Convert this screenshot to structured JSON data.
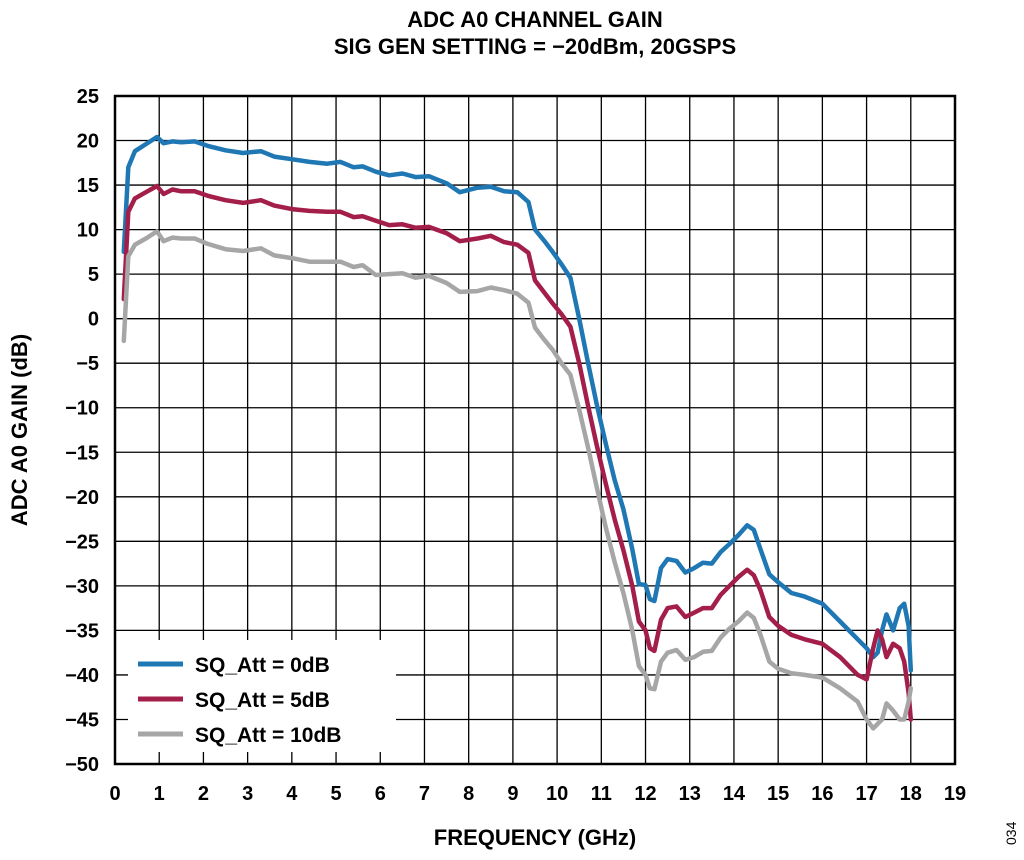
{
  "chart_data": {
    "type": "line",
    "title": "ADC A0 CHANNEL GAIN",
    "subtitle": "SIG GEN SETTING = −20dBm, 20GSPS",
    "xlabel": "FREQUENCY (GHz)",
    "ylabel": "ADC A0 GAIN (dB)",
    "xlim": [
      0,
      19
    ],
    "ylim": [
      -50,
      25
    ],
    "xticks": [
      0,
      1,
      2,
      3,
      4,
      5,
      6,
      7,
      8,
      9,
      10,
      11,
      12,
      13,
      14,
      15,
      16,
      17,
      18,
      19
    ],
    "yticks": [
      25,
      20,
      15,
      10,
      5,
      0,
      -5,
      -10,
      -15,
      -20,
      -25,
      -30,
      -35,
      -40,
      -45,
      -50
    ],
    "xtick_labels": [
      "0",
      "1",
      "2",
      "3",
      "4",
      "5",
      "6",
      "7",
      "8",
      "9",
      "10",
      "11",
      "12",
      "13",
      "14",
      "15",
      "16",
      "17",
      "18",
      "19"
    ],
    "ytick_labels": [
      "25",
      "20",
      "15",
      "10",
      "5",
      "0",
      "−5",
      "−10",
      "−15",
      "−20",
      "−25",
      "−30",
      "−35",
      "−40",
      "−45",
      "−50"
    ],
    "grid": true,
    "legend_position": "bottom-left",
    "figure_number": "034",
    "series": [
      {
        "name": "SQ_Att = 0dB",
        "color": "#1f77b4",
        "x": [
          0.2,
          0.3,
          0.45,
          0.7,
          0.95,
          1.1,
          1.3,
          1.5,
          1.8,
          2.1,
          2.5,
          2.9,
          3.3,
          3.6,
          4.0,
          4.4,
          4.8,
          5.1,
          5.4,
          5.6,
          5.9,
          6.2,
          6.5,
          6.8,
          7.1,
          7.5,
          7.8,
          8.2,
          8.5,
          8.8,
          9.1,
          9.35,
          9.5,
          9.7,
          9.9,
          10.1,
          10.3,
          10.5,
          10.7,
          10.9,
          11.1,
          11.3,
          11.5,
          11.7,
          11.85,
          12.0,
          12.1,
          12.2,
          12.35,
          12.5,
          12.7,
          12.9,
          13.1,
          13.3,
          13.5,
          13.7,
          13.9,
          14.1,
          14.3,
          14.45,
          14.6,
          14.8,
          15.0,
          15.3,
          15.6,
          16.0,
          16.4,
          16.8,
          17.0,
          17.15,
          17.25,
          17.35,
          17.45,
          17.6,
          17.75,
          17.85,
          17.95,
          18.0
        ],
        "y": [
          7.5,
          17.0,
          18.8,
          19.6,
          20.4,
          19.7,
          19.9,
          19.8,
          19.9,
          19.4,
          18.9,
          18.6,
          18.8,
          18.2,
          17.9,
          17.6,
          17.4,
          17.6,
          17.0,
          17.1,
          16.5,
          16.1,
          16.3,
          15.9,
          16.0,
          15.2,
          14.2,
          14.7,
          14.8,
          14.3,
          14.2,
          13.1,
          10.0,
          8.8,
          7.5,
          6.1,
          4.6,
          0.0,
          -5.0,
          -9.7,
          -14.0,
          -18.1,
          -21.4,
          -25.9,
          -29.8,
          -29.9,
          -31.5,
          -31.7,
          -28.0,
          -27.0,
          -27.2,
          -28.5,
          -28.0,
          -27.4,
          -27.5,
          -26.2,
          -25.3,
          -24.3,
          -23.2,
          -23.7,
          -25.9,
          -28.7,
          -29.6,
          -30.8,
          -31.2,
          -32.0,
          -34.0,
          -36.0,
          -37.0,
          -38.0,
          -37.5,
          -35.0,
          -33.2,
          -35.0,
          -32.5,
          -32.0,
          -34.5,
          -39.5
        ]
      },
      {
        "name": "SQ_Att = 5dB",
        "color": "#a31f4a",
        "x": [
          0.2,
          0.3,
          0.45,
          0.7,
          0.95,
          1.1,
          1.3,
          1.5,
          1.8,
          2.1,
          2.5,
          2.9,
          3.3,
          3.6,
          4.0,
          4.4,
          4.8,
          5.1,
          5.4,
          5.6,
          5.9,
          6.2,
          6.5,
          6.8,
          7.1,
          7.5,
          7.8,
          8.2,
          8.5,
          8.8,
          9.1,
          9.35,
          9.5,
          9.7,
          9.9,
          10.1,
          10.3,
          10.5,
          10.7,
          10.9,
          11.1,
          11.3,
          11.5,
          11.7,
          11.85,
          12.0,
          12.1,
          12.2,
          12.35,
          12.5,
          12.7,
          12.9,
          13.1,
          13.3,
          13.5,
          13.7,
          13.9,
          14.1,
          14.3,
          14.45,
          14.6,
          14.8,
          15.0,
          15.3,
          15.6,
          16.0,
          16.4,
          16.8,
          17.0,
          17.15,
          17.25,
          17.35,
          17.45,
          17.6,
          17.75,
          17.85,
          17.95,
          18.0
        ],
        "y": [
          2.2,
          12.0,
          13.5,
          14.2,
          14.9,
          14.0,
          14.5,
          14.3,
          14.3,
          13.8,
          13.3,
          13.0,
          13.3,
          12.7,
          12.3,
          12.1,
          12.0,
          12.0,
          11.4,
          11.5,
          11.0,
          10.5,
          10.6,
          10.2,
          10.3,
          9.6,
          8.7,
          9.0,
          9.3,
          8.6,
          8.3,
          7.4,
          4.3,
          3.0,
          1.7,
          0.5,
          -0.9,
          -5.0,
          -9.8,
          -14.3,
          -18.5,
          -22.5,
          -26.0,
          -30.0,
          -34.0,
          -35.0,
          -37.0,
          -37.3,
          -33.8,
          -32.5,
          -32.3,
          -33.5,
          -33.0,
          -32.5,
          -32.5,
          -31.0,
          -30.0,
          -29.0,
          -28.2,
          -28.8,
          -30.5,
          -33.5,
          -34.5,
          -35.5,
          -36.0,
          -36.5,
          -38.0,
          -40.0,
          -40.5,
          -37.0,
          -35.0,
          -36.0,
          -38.0,
          -36.5,
          -37.0,
          -38.5,
          -42.0,
          -45.0
        ]
      },
      {
        "name": "SQ_Att = 10dB",
        "color": "#a6a6a6",
        "x": [
          0.2,
          0.3,
          0.45,
          0.7,
          0.95,
          1.1,
          1.3,
          1.5,
          1.8,
          2.1,
          2.5,
          2.9,
          3.3,
          3.6,
          4.0,
          4.4,
          4.8,
          5.1,
          5.4,
          5.6,
          5.9,
          6.2,
          6.5,
          6.8,
          7.1,
          7.5,
          7.8,
          8.2,
          8.5,
          8.8,
          9.1,
          9.35,
          9.5,
          9.7,
          9.9,
          10.1,
          10.3,
          10.5,
          10.7,
          10.9,
          11.1,
          11.3,
          11.5,
          11.7,
          11.85,
          12.0,
          12.1,
          12.2,
          12.35,
          12.5,
          12.7,
          12.9,
          13.1,
          13.3,
          13.5,
          13.7,
          13.9,
          14.1,
          14.3,
          14.45,
          14.6,
          14.8,
          15.0,
          15.3,
          15.6,
          16.0,
          16.4,
          16.8,
          17.0,
          17.15,
          17.25,
          17.35,
          17.45,
          17.6,
          17.75,
          17.85,
          17.95,
          18.0
        ],
        "y": [
          -2.5,
          7.0,
          8.3,
          9.0,
          9.8,
          8.7,
          9.1,
          9.0,
          9.0,
          8.4,
          7.8,
          7.6,
          7.9,
          7.1,
          6.8,
          6.4,
          6.4,
          6.4,
          5.8,
          6.0,
          4.9,
          5.0,
          5.1,
          4.6,
          4.8,
          4.0,
          3.0,
          3.1,
          3.5,
          3.2,
          2.8,
          1.8,
          -1.0,
          -2.3,
          -3.5,
          -5.0,
          -6.3,
          -10.2,
          -14.5,
          -19.0,
          -23.4,
          -27.3,
          -30.8,
          -35.0,
          -39.0,
          -40.0,
          -41.5,
          -41.6,
          -38.5,
          -37.5,
          -37.2,
          -38.3,
          -38.0,
          -37.4,
          -37.3,
          -35.8,
          -34.8,
          -34.0,
          -33.0,
          -33.6,
          -35.5,
          -38.5,
          -39.3,
          -39.8,
          -40.0,
          -40.3,
          -41.5,
          -43.0,
          -45.0,
          -46.0,
          -45.5,
          -45.0,
          -43.2,
          -44.0,
          -45.0,
          -45.0,
          -43.0,
          -41.5
        ]
      }
    ]
  }
}
